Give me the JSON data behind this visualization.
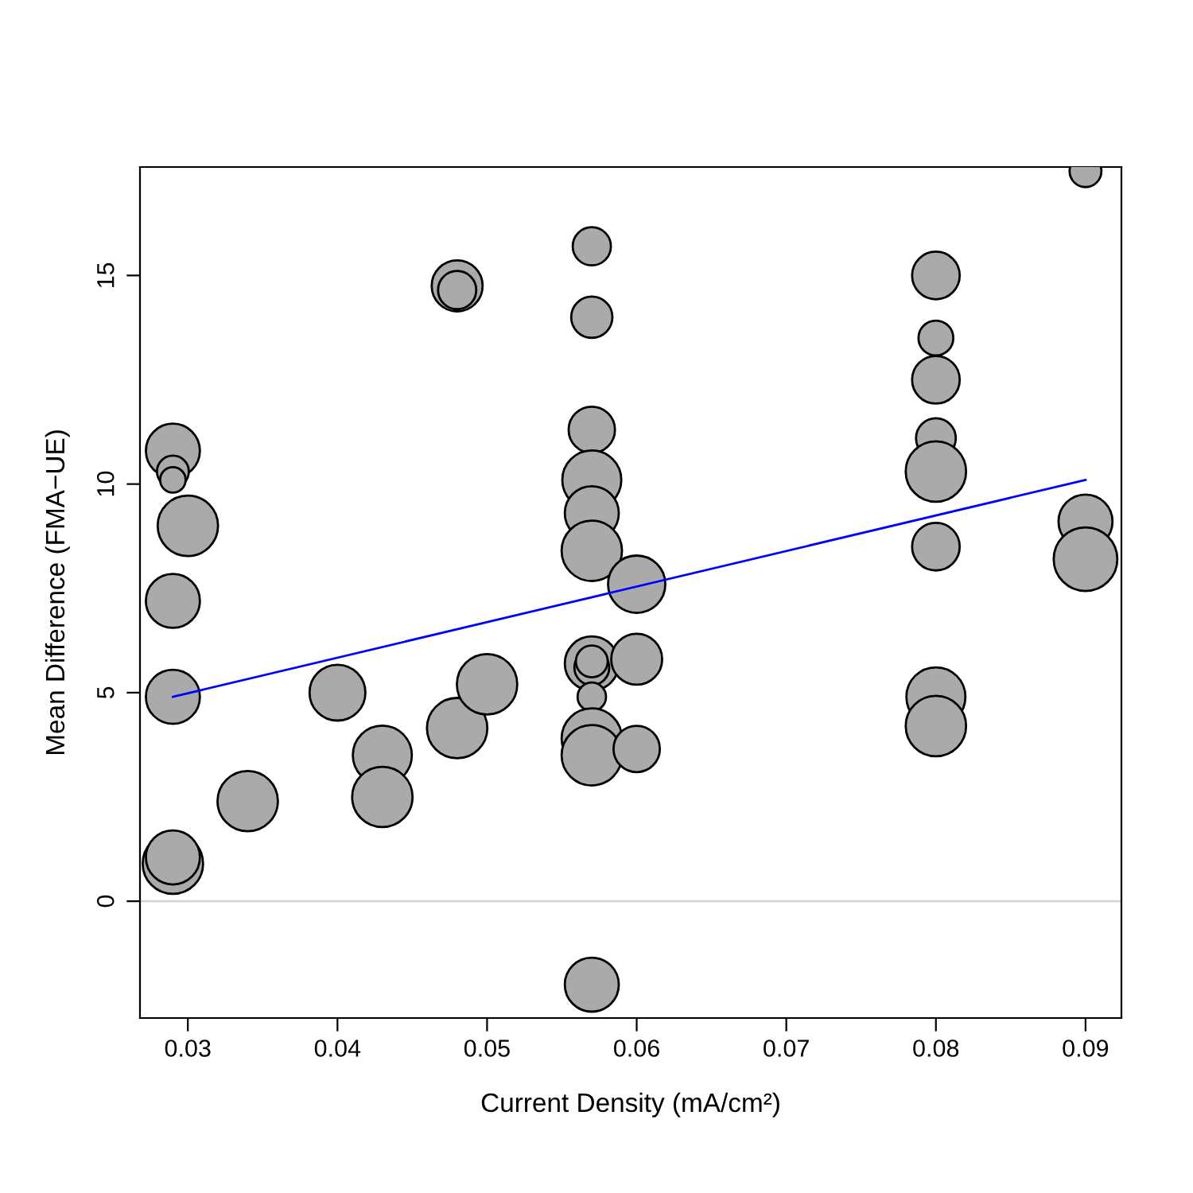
{
  "chart_data": {
    "type": "bubble",
    "xlabel": "Current Density (mA/cm²)",
    "ylabel": "Mean Difference (FMA−UE)",
    "xlim": [
      0.0268,
      0.0924
    ],
    "xticks": [
      0.03,
      0.04,
      0.05,
      0.06,
      0.07,
      0.08,
      0.09
    ],
    "ylim": [
      -2.8,
      17.6
    ],
    "yticks": [
      0,
      5,
      10,
      15
    ],
    "grid": false,
    "legend": false,
    "ref_lines": [
      {
        "axis": "y",
        "value": 0,
        "color": "#d3d3d3"
      }
    ],
    "series": [
      {
        "color": "#aaaaaa",
        "x": [
          0.029,
          0.029,
          0.029,
          0.03,
          0.029,
          0.029,
          0.029,
          0.029,
          0.034,
          0.04,
          0.043,
          0.043,
          0.048,
          0.048,
          0.048,
          0.05,
          0.057,
          0.057,
          0.057,
          0.057,
          0.057,
          0.057,
          0.057,
          0.057,
          0.057,
          0.057,
          0.057,
          0.057,
          0.057,
          0.06,
          0.06,
          0.06,
          0.08,
          0.08,
          0.08,
          0.08,
          0.08,
          0.08,
          0.08,
          0.08,
          0.09,
          0.09,
          0.09
        ],
        "values": [
          10.8,
          10.3,
          10.1,
          9.0,
          7.2,
          4.9,
          0.9,
          1.05,
          2.4,
          5.0,
          3.5,
          2.5,
          14.75,
          14.65,
          4.15,
          5.2,
          15.7,
          14.0,
          11.3,
          10.1,
          9.3,
          8.4,
          5.7,
          5.6,
          5.75,
          4.9,
          3.9,
          3.5,
          -2.0,
          7.6,
          5.8,
          3.65,
          15.0,
          13.5,
          12.5,
          11.1,
          10.3,
          8.5,
          4.9,
          4.2,
          17.5,
          9.1,
          8.2
        ],
        "sizes": [
          0.72,
          0.25,
          0.16,
          0.9,
          0.72,
          0.72,
          0.9,
          0.72,
          0.9,
          0.77,
          0.86,
          0.9,
          0.64,
          0.36,
          0.9,
          0.9,
          0.36,
          0.42,
          0.53,
          0.86,
          0.72,
          0.9,
          0.72,
          0.3,
          0.25,
          0.2,
          0.9,
          0.9,
          0.72,
          0.81,
          0.64,
          0.53,
          0.56,
          0.3,
          0.56,
          0.39,
          0.9,
          0.56,
          0.86,
          0.9,
          0.25,
          0.72,
          1
        ]
      },
      {
        "type": "line",
        "color": "#0000ff",
        "x": [
          0.029,
          0.09
        ],
        "values": [
          4.9,
          10.1
        ]
      }
    ]
  }
}
